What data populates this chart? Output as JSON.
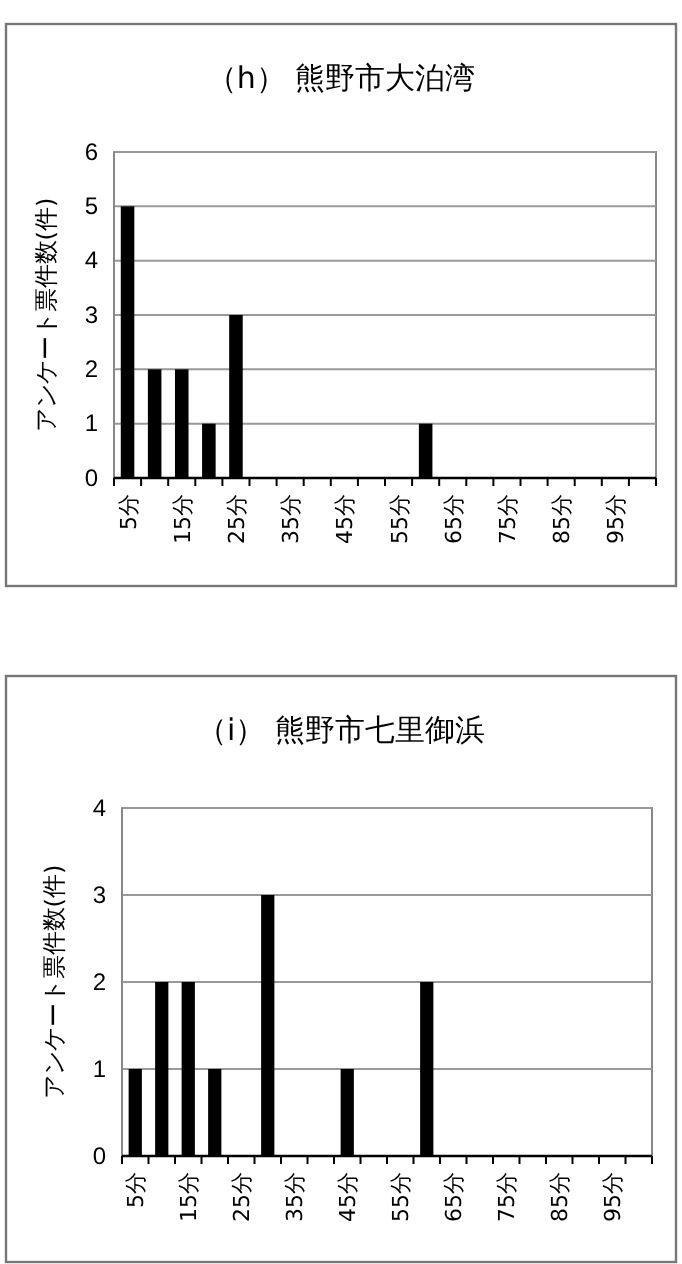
{
  "chart_data": [
    {
      "type": "bar",
      "title": "（h） 熊野市大泊湾",
      "ylabel": "アンケート票件数(件)",
      "categories": [
        "5分",
        null,
        "15分",
        null,
        "25分",
        null,
        "35分",
        null,
        "45分",
        null,
        "55分",
        null,
        "65分",
        null,
        "75分",
        null,
        "85分",
        null,
        "95分",
        null
      ],
      "values": [
        5,
        2,
        2,
        1,
        3,
        0,
        0,
        0,
        0,
        0,
        0,
        1,
        0,
        0,
        0,
        0,
        0,
        0,
        0,
        0
      ],
      "color": "#000000",
      "ylim": [
        0,
        6
      ],
      "yticks": [
        0,
        1,
        2,
        3,
        4,
        5,
        6
      ],
      "grid": "y"
    },
    {
      "type": "bar",
      "title": "（i） 熊野市七里御浜",
      "ylabel": "アンケート票件数(件)",
      "categories": [
        "5分",
        null,
        "15分",
        null,
        "25分",
        null,
        "35分",
        null,
        "45分",
        null,
        "55分",
        null,
        "65分",
        null,
        "75分",
        null,
        "85分",
        null,
        "95分",
        null
      ],
      "values": [
        1,
        2,
        2,
        1,
        0,
        3,
        0,
        0,
        1,
        0,
        0,
        2,
        0,
        0,
        0,
        0,
        0,
        0,
        0,
        0
      ],
      "color": "#000000",
      "ylim": [
        0,
        4
      ],
      "yticks": [
        0,
        1,
        2,
        3,
        4
      ],
      "grid": "y"
    }
  ]
}
